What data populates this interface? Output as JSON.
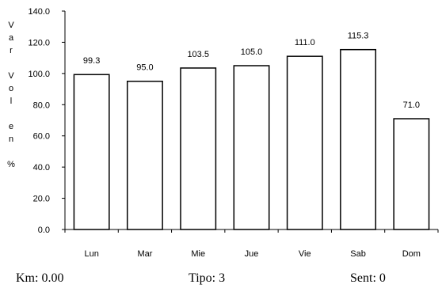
{
  "chart_data": {
    "type": "bar",
    "categories": [
      "Lun",
      "Mar",
      "Mie",
      "Jue",
      "Vie",
      "Sab",
      "Dom"
    ],
    "values": [
      99.3,
      95.0,
      103.5,
      105.0,
      111.0,
      115.3,
      71.0
    ],
    "value_labels": [
      "99.3",
      "95.0",
      "103.5",
      "105.0",
      "111.0",
      "115.3",
      "71.0"
    ],
    "ylabel": "Var Vol en %",
    "ylabel_lines": [
      "V",
      "a",
      "r",
      "",
      "V",
      "o",
      "l",
      "",
      "e",
      "n",
      "",
      "%"
    ],
    "ylim": [
      0,
      140
    ],
    "yticks": [
      0,
      20,
      40,
      60,
      80,
      100,
      120,
      140
    ],
    "ytick_labels": [
      "0.0",
      "20.0",
      "40.0",
      "60.0",
      "80.0",
      "100.0",
      "120.0",
      "140.0"
    ],
    "grid": false,
    "legend": "none",
    "bar_fill": "#ffffff",
    "bar_stroke": "#000000"
  },
  "footer": {
    "km": "Km: 0.00",
    "tipo": "Tipo: 3",
    "sent": "Sent: 0"
  }
}
